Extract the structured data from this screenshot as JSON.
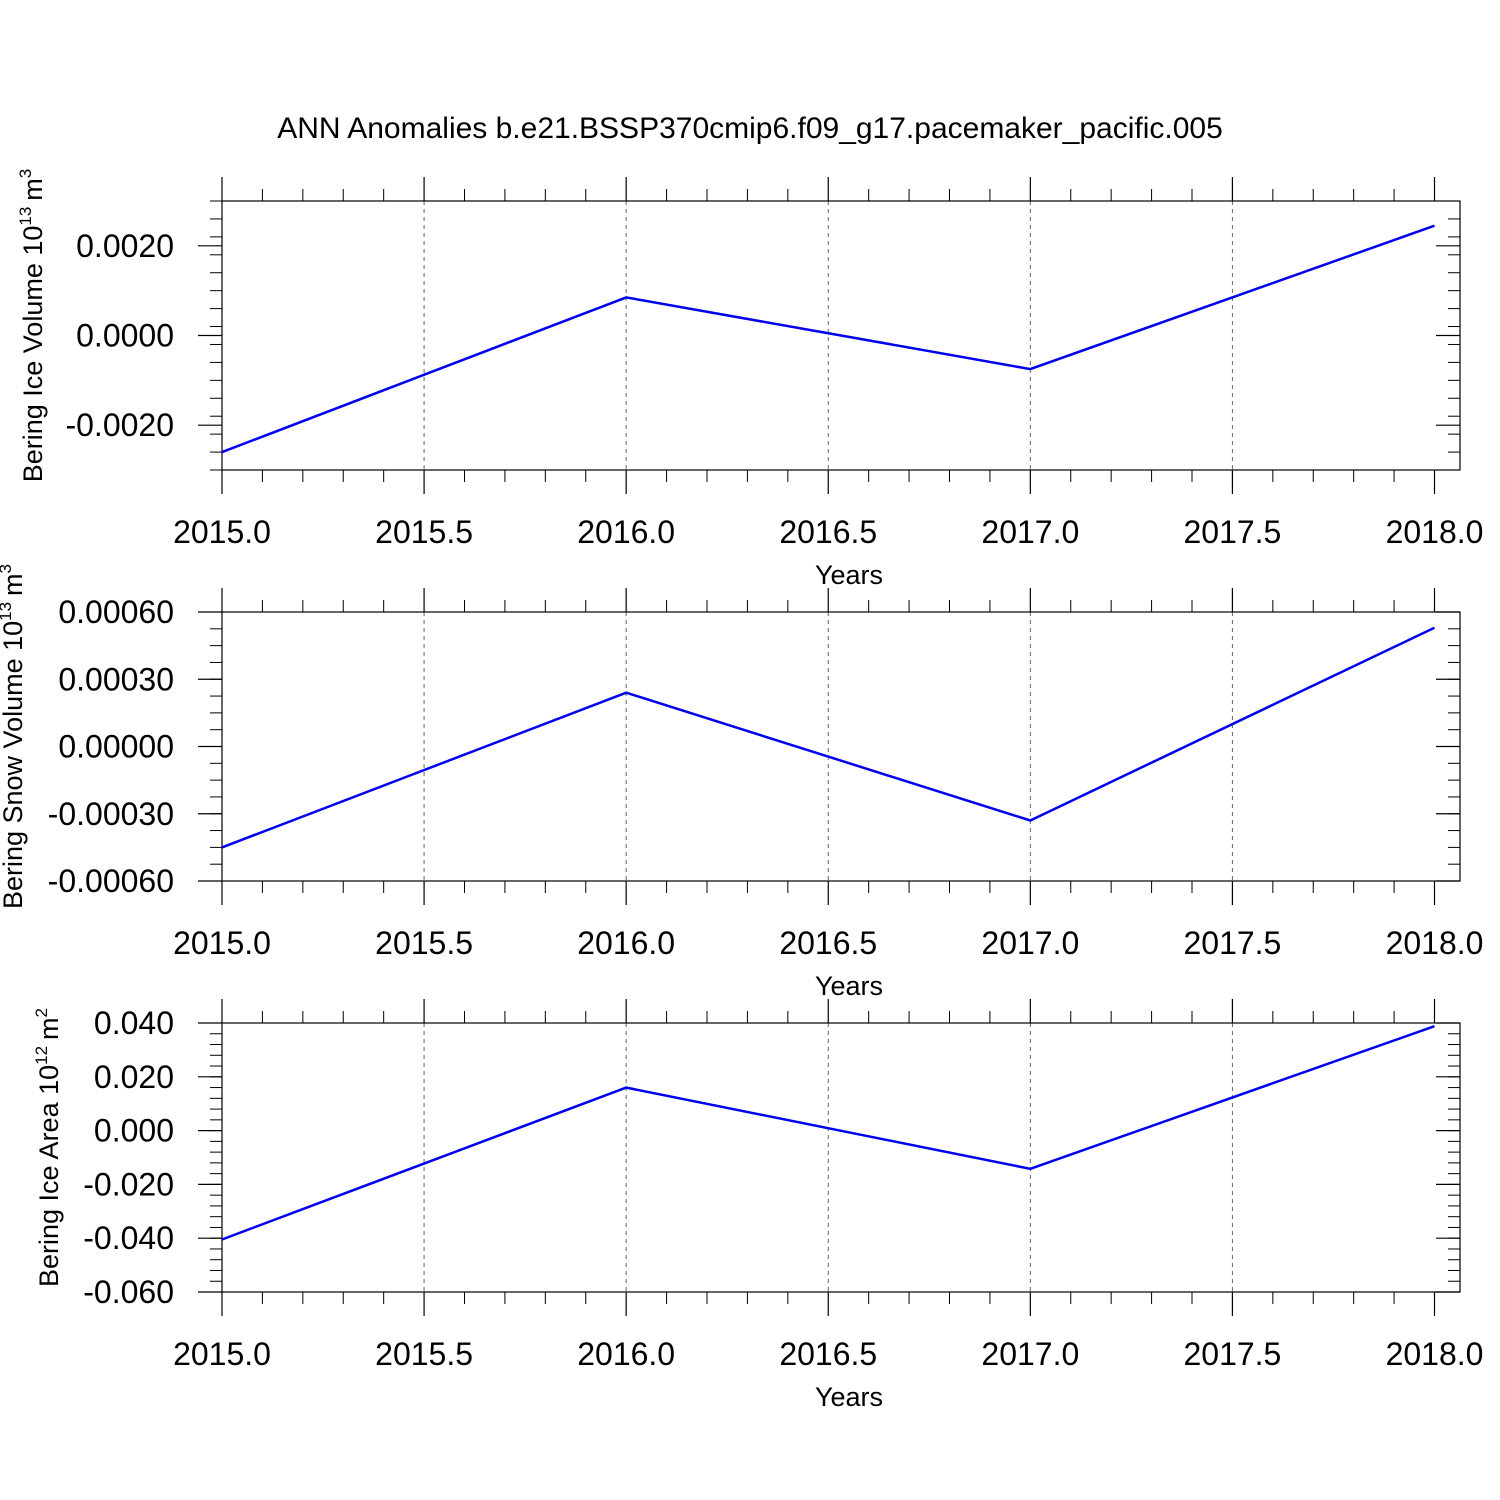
{
  "title": "ANN Anomalies b.e21.BSSP370cmip6.f09_g17.pacemaker_pacific.005",
  "colors": {
    "series": "#0000ee",
    "axis": "#000000",
    "grid": "#666666",
    "background": "#ffffff"
  },
  "chart_data": [
    {
      "type": "line",
      "title": "ANN Anomalies b.e21.BSSP370cmip6.f09_g17.pacemaker_pacific.005",
      "xlabel": "Years",
      "ylabel": {
        "text": "Bering Ice Volume 10",
        "exp": "13",
        "unit": "m",
        "unit_exp": "3"
      },
      "xlim": [
        2015.0,
        2018.0
      ],
      "ylim": [
        -0.003,
        0.003
      ],
      "x_ticks": [
        "2015.0",
        "2015.5",
        "2016.0",
        "2016.5",
        "2017.0",
        "2017.5",
        "2018.0"
      ],
      "y_ticks": [
        {
          "value": -0.002,
          "label": "-0.0020"
        },
        {
          "value": 0.0,
          "label": "0.0000"
        },
        {
          "value": 0.002,
          "label": "0.0020"
        }
      ],
      "x": [
        2015,
        2016,
        2017,
        2018
      ],
      "series": [
        {
          "values": [
            -0.0026,
            0.00085,
            -0.00075,
            0.00245
          ]
        }
      ],
      "grid": "vertical dashed at x ticks"
    },
    {
      "type": "line",
      "xlabel": "Years",
      "ylabel": {
        "text": "Bering Snow Volume 10",
        "exp": "13",
        "unit": "m",
        "unit_exp": "3"
      },
      "xlim": [
        2015.0,
        2018.0
      ],
      "ylim": [
        -0.0006,
        0.0006
      ],
      "x_ticks": [
        "2015.0",
        "2015.5",
        "2016.0",
        "2016.5",
        "2017.0",
        "2017.5",
        "2018.0"
      ],
      "y_ticks": [
        {
          "value": -0.0006,
          "label": "-0.00060"
        },
        {
          "value": -0.0003,
          "label": "-0.00030"
        },
        {
          "value": 0.0,
          "label": "0.00000"
        },
        {
          "value": 0.0003,
          "label": "0.00030"
        },
        {
          "value": 0.0006,
          "label": "0.00060"
        }
      ],
      "x": [
        2015,
        2016,
        2017,
        2018
      ],
      "series": [
        {
          "values": [
            -0.00045,
            0.00024,
            -0.00033,
            0.00053
          ]
        }
      ],
      "grid": "vertical dashed at x ticks"
    },
    {
      "type": "line",
      "xlabel": "Years",
      "ylabel": {
        "text": "Bering Ice Area 10",
        "exp": "12",
        "unit": "m",
        "unit_exp": "2"
      },
      "xlim": [
        2015.0,
        2018.0
      ],
      "ylim": [
        -0.06,
        0.04
      ],
      "x_ticks": [
        "2015.0",
        "2015.5",
        "2016.0",
        "2016.5",
        "2017.0",
        "2017.5",
        "2018.0"
      ],
      "y_ticks": [
        {
          "value": -0.06,
          "label": "-0.060"
        },
        {
          "value": -0.04,
          "label": "-0.040"
        },
        {
          "value": -0.02,
          "label": "-0.020"
        },
        {
          "value": 0.0,
          "label": "0.000"
        },
        {
          "value": 0.02,
          "label": "0.020"
        },
        {
          "value": 0.04,
          "label": "0.040"
        }
      ],
      "x": [
        2015,
        2016,
        2017,
        2018
      ],
      "series": [
        {
          "values": [
            -0.0405,
            0.016,
            -0.0142,
            0.0388
          ]
        }
      ],
      "grid": "vertical dashed at x ticks"
    }
  ]
}
